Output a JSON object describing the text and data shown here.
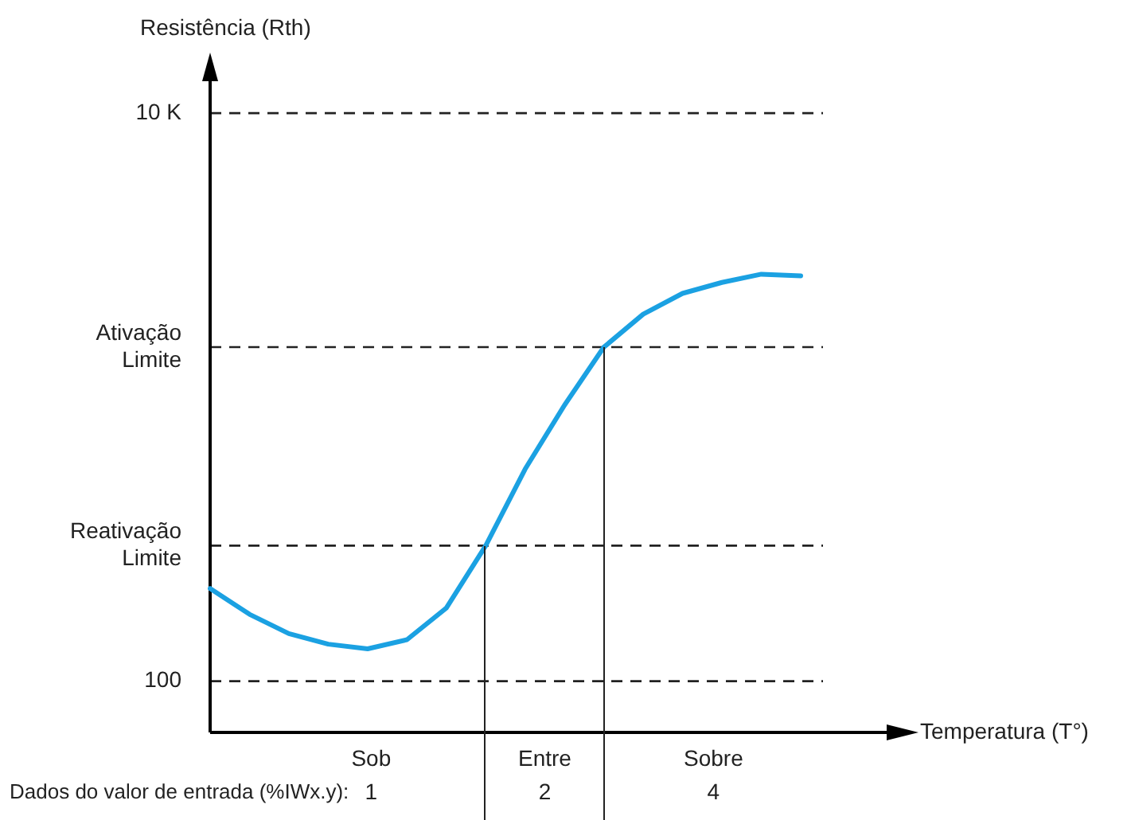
{
  "chart_data": {
    "type": "line",
    "xlabel": "Temperatura (T°)",
    "ylabel": "Resistência (Rth)",
    "log": "y",
    "grid": false,
    "legend": false,
    "marker": "none",
    "line_style": "solid",
    "tick_labels": "y",
    "ylim": [
      66,
      14000
    ],
    "yticks": [
      100,
      {
        "value": 300,
        "label": "Reativação Limite"
      },
      {
        "value": 1500,
        "label": "Ativação Limite"
      },
      {
        "value": 10000,
        "label": "10 K"
      }
    ],
    "categories": [
      null,
      null,
      null,
      null,
      null,
      null,
      null,
      null,
      null,
      null,
      null,
      null,
      null,
      null,
      null,
      null
    ],
    "series": [
      {
        "color": "#1ba1e2",
        "values": [
          212,
          172,
          147,
          135,
          130,
          140,
          181,
          300,
          558,
          937,
          1500,
          1960,
          2320,
          2535,
          2710,
          2675
        ]
      }
    ],
    "ref_lines": [
      {
        "axis": "y",
        "value": 10000,
        "line_style": "dashed"
      },
      {
        "axis": "y",
        "value": 1500,
        "line_style": "dashed"
      },
      {
        "axis": "y",
        "value": 300,
        "line_style": "dashed"
      },
      {
        "axis": "y",
        "value": 100,
        "line_style": "dashed"
      }
    ],
    "annotations": [
      "Sob",
      "Entre",
      "Sobre",
      "Dados do valor de entrada (%IWx.y):",
      "1",
      "2",
      "4"
    ]
  }
}
